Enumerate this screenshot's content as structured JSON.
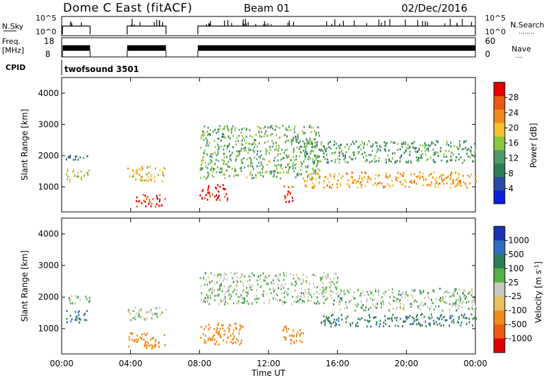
{
  "header": {
    "title": "Dome C East (fitACF)",
    "beam": "Beam 01",
    "date": "02/Dec/2016"
  },
  "panel_labels": {
    "nsky": "N.Sky",
    "nsearch": "N.Search",
    "nsearch_dots": "........",
    "freq_top": "Freq.",
    "freq_unit": "[MHz]",
    "nave": "Nave",
    "nave_dots": "....",
    "cpid": "CPID"
  },
  "noise_axis": {
    "left_ticks": [
      "10^5",
      "10^0"
    ],
    "right_ticks": [
      "10^5",
      "10^0"
    ]
  },
  "freq_axis": {
    "left_ticks": [
      "18",
      "8"
    ],
    "right_ticks": [
      "60",
      "0"
    ]
  },
  "cpid_text": "twofsound 3501",
  "colors": {
    "power_scale": [
      "#0a1fe0",
      "#2b4aa8",
      "#2e7d55",
      "#4f9a68",
      "#8cc63f",
      "#f2c230",
      "#f08a1c",
      "#e85a12",
      "#e00000"
    ],
    "velocity_scale": [
      "#1a33b0",
      "#2e6fbf",
      "#2e7d55",
      "#55b04a",
      "#c8c8c0",
      "#e8c060",
      "#f08a1c",
      "#f05a12",
      "#e00000"
    ]
  },
  "chart_data": [
    {
      "type": "heatmap",
      "quantity": "Power",
      "ylabel": "Slant Range [km]",
      "ylim": [
        200,
        4500
      ],
      "yticks": [
        "1000",
        "2000",
        "3000",
        "4000"
      ],
      "colorbar_label": "Power [dB]",
      "colorbar_ticks": [
        "4",
        "8",
        "12",
        "16",
        "20",
        "24",
        "28"
      ],
      "colorbar_range": [
        0,
        32
      ],
      "scatter_bands": [
        {
          "x": [
            0.2,
            1.6
          ],
          "y": [
            1200,
            1600
          ],
          "value": 18
        },
        {
          "x": [
            0.2,
            1.6
          ],
          "y": [
            1900,
            2100
          ],
          "value": 8
        },
        {
          "x": [
            3.8,
            6.0
          ],
          "y": [
            1200,
            1700
          ],
          "value": 20
        },
        {
          "x": [
            4.3,
            6.0
          ],
          "y": [
            400,
            800
          ],
          "value": 30
        },
        {
          "x": [
            8.0,
            9.6
          ],
          "y": [
            600,
            1100
          ],
          "value": 30
        },
        {
          "x": [
            8.0,
            15.0
          ],
          "y": [
            1300,
            3000
          ],
          "value": 14
        },
        {
          "x": [
            12.8,
            13.4
          ],
          "y": [
            500,
            1100
          ],
          "value": 28
        },
        {
          "x": [
            14.0,
            24.0
          ],
          "y": [
            1000,
            1500
          ],
          "value": 22
        },
        {
          "x": [
            14.0,
            24.0
          ],
          "y": [
            1800,
            2500
          ],
          "value": 12
        }
      ]
    },
    {
      "type": "heatmap",
      "quantity": "Velocity",
      "ylabel": "Slant Range [km]",
      "ylim": [
        200,
        4500
      ],
      "yticks": [
        "1000",
        "2000",
        "3000",
        "4000"
      ],
      "colorbar_label": "Velocity [m s^-1]",
      "colorbar_ticks": [
        "1000",
        "500",
        "100",
        "25",
        "-25",
        "-100",
        "-500",
        "-1000"
      ],
      "scatter_bands": [
        {
          "x": [
            0.2,
            1.6
          ],
          "y": [
            1200,
            1600
          ],
          "value": 100
        },
        {
          "x": [
            0.2,
            1.6
          ],
          "y": [
            1800,
            2100
          ],
          "value": 0
        },
        {
          "x": [
            3.8,
            6.0
          ],
          "y": [
            1300,
            1700
          ],
          "value": 0
        },
        {
          "x": [
            3.8,
            6.0
          ],
          "y": [
            400,
            900
          ],
          "value": -300
        },
        {
          "x": [
            8.0,
            10.5
          ],
          "y": [
            500,
            1200
          ],
          "value": -400
        },
        {
          "x": [
            8.0,
            16.0
          ],
          "y": [
            1800,
            2800
          ],
          "value": 0
        },
        {
          "x": [
            12.8,
            14.0
          ],
          "y": [
            500,
            1100
          ],
          "value": -400
        },
        {
          "x": [
            15.0,
            24.0
          ],
          "y": [
            1100,
            1500
          ],
          "value": 80
        },
        {
          "x": [
            16.0,
            24.0
          ],
          "y": [
            1600,
            2300
          ],
          "value": 0
        }
      ]
    }
  ],
  "x_axis": {
    "ticks": [
      "00:00",
      "04:00",
      "08:00",
      "12:00",
      "16:00",
      "20:00",
      "00:00"
    ],
    "label": "Time UT",
    "range_hours": [
      0,
      24
    ]
  },
  "data_gaps": [
    [
      1.65,
      3.8
    ],
    [
      6.05,
      7.9
    ]
  ]
}
